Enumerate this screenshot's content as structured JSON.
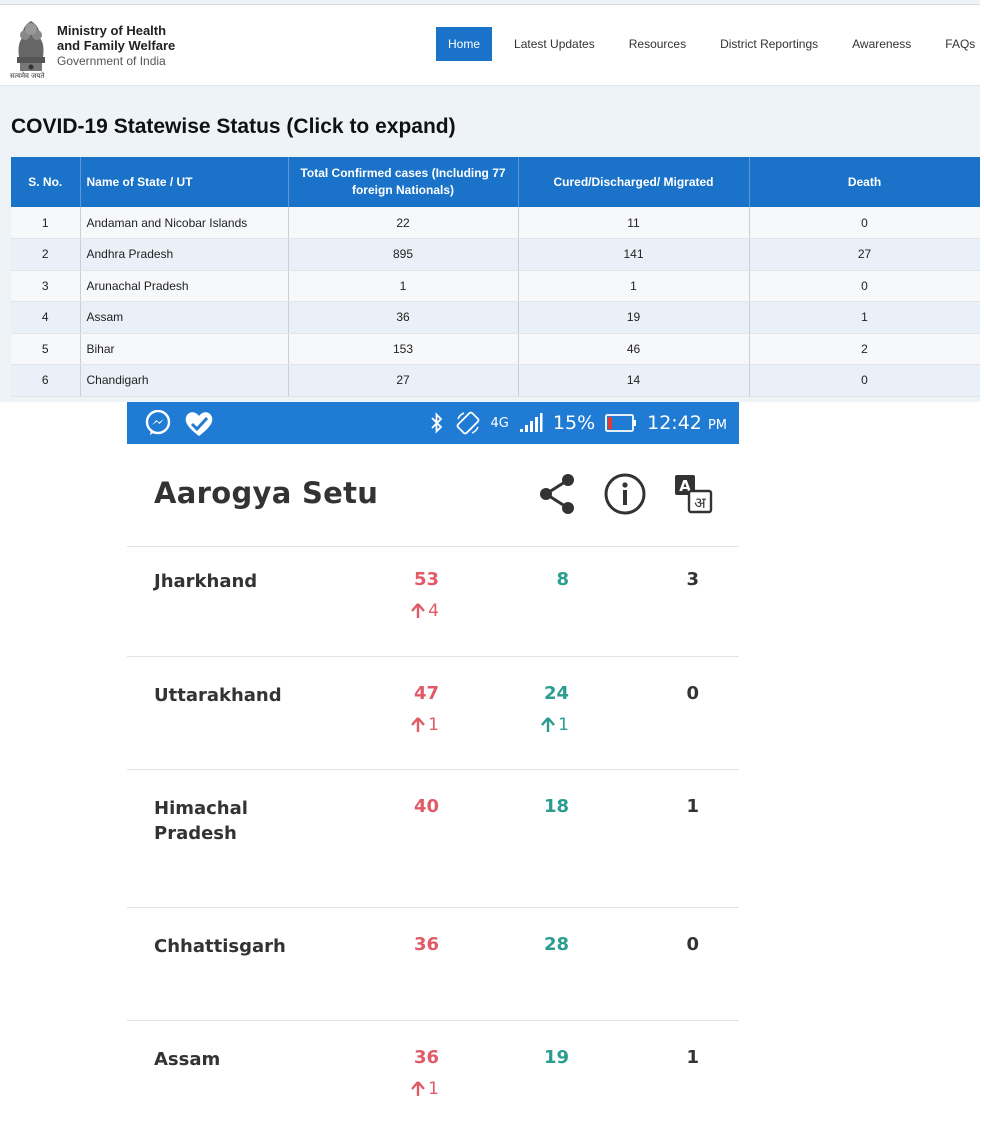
{
  "mohfw": {
    "emblem_caption": "सत्यमेव जयते",
    "ministry": {
      "line1": "Ministry of Health",
      "line2": "and Family Welfare",
      "line3": "Government of India"
    },
    "nav": [
      "Home",
      "Latest Updates",
      "Resources",
      "District Reportings",
      "Awareness",
      "FAQs"
    ],
    "section_title": "COVID-19 Statewise Status (Click to expand)",
    "table": {
      "headers": [
        "S. No.",
        "Name of State / UT",
        "Total Confirmed cases (Including 77 foreign Nationals)",
        "Cured/Discharged/ Migrated",
        "Death"
      ],
      "rows": [
        [
          "1",
          "Andaman and Nicobar Islands",
          "22",
          "11",
          "0"
        ],
        [
          "2",
          "Andhra Pradesh",
          "895",
          "141",
          "27"
        ],
        [
          "3",
          "Arunachal Pradesh",
          "1",
          "1",
          "0"
        ],
        [
          "4",
          "Assam",
          "36",
          "19",
          "1"
        ],
        [
          "5",
          "Bihar",
          "153",
          "46",
          "2"
        ],
        [
          "6",
          "Chandigarh",
          "27",
          "14",
          "0"
        ]
      ]
    }
  },
  "phone": {
    "status_bar": {
      "network": "4G",
      "battery": "15%",
      "time": "12:42",
      "ampm": "PM"
    },
    "colors": {
      "status_bar": "#1f7bd3",
      "confirmed": "#e05b67",
      "cured": "#2a9d8f"
    },
    "app_title": "Aarogya Setu",
    "icons": [
      "share-icon",
      "info-icon",
      "translate-icon"
    ],
    "translate_glyphs": {
      "latin": "A",
      "devanagari": "अ"
    },
    "states": [
      {
        "name": "Jharkhand",
        "confirmed": "53",
        "cured": "8",
        "deaths": "3",
        "confirmed_delta": "4",
        "cured_delta": ""
      },
      {
        "name": "Uttarakhand",
        "confirmed": "47",
        "cured": "24",
        "deaths": "0",
        "confirmed_delta": "1",
        "cured_delta": "1"
      },
      {
        "name": "Himachal Pradesh",
        "confirmed": "40",
        "cured": "18",
        "deaths": "1",
        "confirmed_delta": "",
        "cured_delta": ""
      },
      {
        "name": "Chhattisgarh",
        "confirmed": "36",
        "cured": "28",
        "deaths": "0",
        "confirmed_delta": "",
        "cured_delta": ""
      },
      {
        "name": "Assam",
        "confirmed": "36",
        "cured": "19",
        "deaths": "1",
        "confirmed_delta": "1",
        "cured_delta": ""
      }
    ]
  }
}
